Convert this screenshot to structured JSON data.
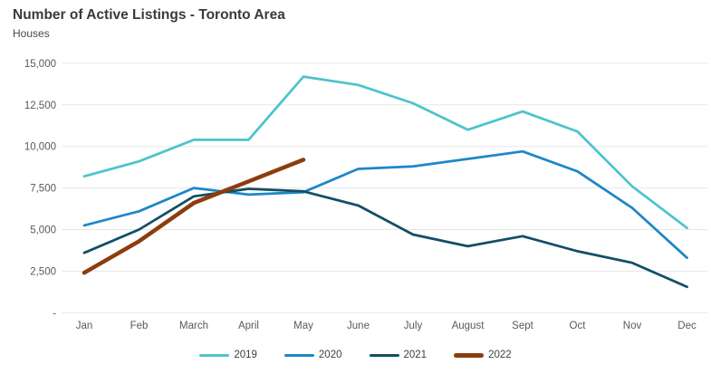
{
  "header": {
    "title": "Number of Active Listings - Toronto Area",
    "subtitle": "Houses"
  },
  "chart_data": {
    "type": "line",
    "title": "Number of Active Listings - Toronto Area",
    "subtitle": "Houses",
    "xlabel": "",
    "ylabel": "Houses",
    "ylim": [
      0,
      15000
    ],
    "grid": "horizontal-only",
    "legend_position": "bottom-center",
    "categories": [
      "Jan",
      "Feb",
      "March",
      "April",
      "May",
      "June",
      "July",
      "August",
      "Sept",
      "Oct",
      "Nov",
      "Dec"
    ],
    "yticks": [
      {
        "label": "15,000",
        "value": 15000
      },
      {
        "label": "12,500",
        "value": 12500
      },
      {
        "label": "10,000",
        "value": 10000
      },
      {
        "label": "7,500",
        "value": 7500
      },
      {
        "label": "5,000",
        "value": 5000
      },
      {
        "label": "2,500",
        "value": 2500
      },
      {
        "label": "-",
        "value": 0
      }
    ],
    "series": [
      {
        "name": "2019",
        "color": "#4dc3cd",
        "thick": false,
        "values": [
          8200,
          9100,
          10400,
          10400,
          14200,
          13700,
          12600,
          11000,
          12100,
          10900,
          7600,
          5100
        ]
      },
      {
        "name": "2020",
        "color": "#1d87c8",
        "thick": false,
        "values": [
          5250,
          6100,
          7500,
          7100,
          7250,
          8650,
          8800,
          9250,
          9700,
          8500,
          6300,
          3300
        ]
      },
      {
        "name": "2021",
        "color": "#124e66",
        "thick": false,
        "values": [
          3600,
          5000,
          7000,
          7450,
          7300,
          6450,
          4700,
          4000,
          4600,
          3700,
          3000,
          1550
        ]
      },
      {
        "name": "2022",
        "color": "#8c3d0e",
        "thick": true,
        "values": [
          2400,
          4300,
          6600,
          7900,
          9200,
          null,
          null,
          null,
          null,
          null,
          null,
          null
        ]
      }
    ],
    "style": {
      "gridline_color": "#e7e7e7",
      "tick_label_color": "#595959",
      "title_color": "#3a3a3a",
      "background": "#ffffff"
    }
  }
}
